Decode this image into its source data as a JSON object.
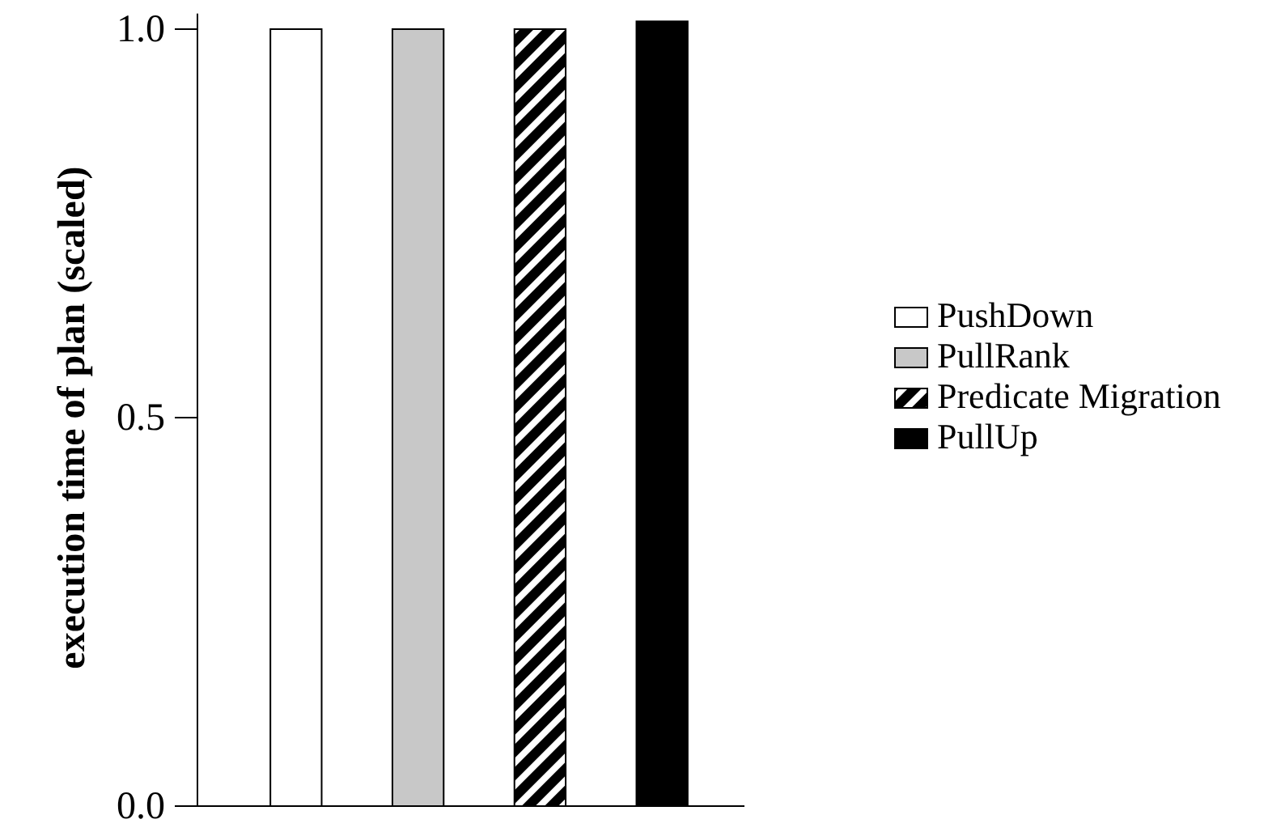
{
  "chart_data": {
    "type": "bar",
    "ylabel": "execution time of plan (scaled)",
    "categories": [
      null
    ],
    "series": [
      {
        "name": "PushDown",
        "color": "#ffffff",
        "values": [
          1.0
        ]
      },
      {
        "name": "PullRank",
        "color": "#c8c8c8",
        "values": [
          1.0
        ]
      },
      {
        "name": "Predicate Migration",
        "color": "#000000",
        "values": [
          1.0
        ]
      },
      {
        "name": "PullUp",
        "color": "#000000",
        "values": [
          1.01
        ]
      }
    ],
    "ylim": [
      0,
      1.02
    ],
    "yticks": [
      {
        "value": 0,
        "label": "0.0"
      },
      {
        "value": 0.5,
        "label": "0.5"
      },
      {
        "value": 1,
        "label": "1.0"
      }
    ],
    "grid": false,
    "legend": "right"
  }
}
